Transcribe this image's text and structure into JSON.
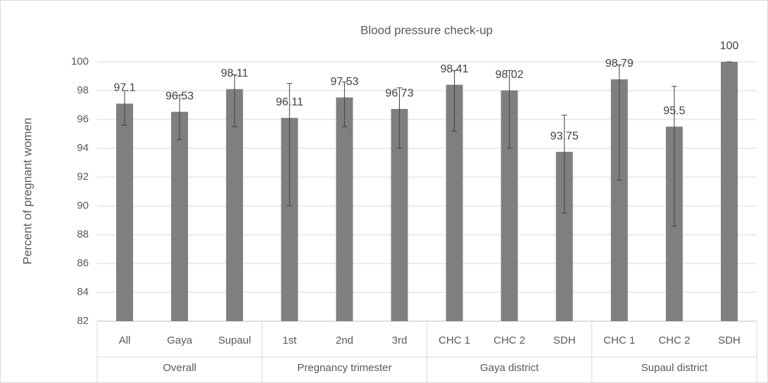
{
  "chart_data": {
    "type": "bar",
    "title": "Blood pressure check-up",
    "y_label": "Percent of pregnant women",
    "groups": [
      {
        "name": "Overall",
        "categories": [
          "All",
          "Gaya",
          "Supaul"
        ]
      },
      {
        "name": "Pregnancy trimester",
        "categories": [
          "1st",
          "2nd",
          "3rd"
        ]
      },
      {
        "name": "Gaya district",
        "categories": [
          "CHC 1",
          "CHC 2",
          "SDH"
        ]
      },
      {
        "name": "Supaul district",
        "categories": [
          "CHC 1",
          "CHC 2",
          "SDH"
        ]
      }
    ],
    "values": [
      97.1,
      96.53,
      98.11,
      96.11,
      97.53,
      96.73,
      98.41,
      98.02,
      93.75,
      98.79,
      95.5,
      100
    ],
    "ci_low": [
      95.6,
      94.6,
      95.5,
      90.0,
      95.5,
      94.0,
      95.2,
      94.0,
      89.5,
      91.8,
      88.6,
      100
    ],
    "ci_high": [
      98.0,
      97.7,
      99.1,
      98.5,
      98.6,
      98.2,
      99.4,
      99.4,
      96.3,
      99.8,
      98.3,
      100
    ],
    "color": "#7f7f7f",
    "ylim": [
      82,
      100
    ],
    "yticks": [
      82,
      84,
      86,
      88,
      90,
      92,
      94,
      96,
      98,
      100
    ],
    "grid": true
  }
}
